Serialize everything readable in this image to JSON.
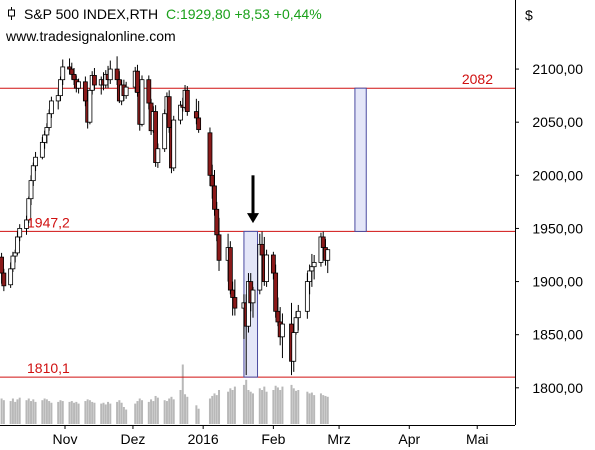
{
  "header": {
    "symbol": "S&P 500 INDEX,RTH",
    "quote": "C:1929,80 +8,53 +0,44%",
    "source": "www.tradesignalonline.com",
    "currency": "$"
  },
  "colors": {
    "level_line": "#d01010",
    "bull": "#ffffff",
    "bear": "#8b1a1a",
    "box_fill": "#e4e6f8",
    "box_stroke": "#4a4aa0",
    "volume": "#b8b8b8",
    "quote_green": "#1aa01a"
  },
  "chart_data": {
    "type": "candlestick",
    "title": "S&P 500 INDEX,RTH",
    "ylim": [
      1765,
      2165
    ],
    "y_ticks": [
      {
        "value": 2100,
        "label": "2100,00"
      },
      {
        "value": 2050,
        "label": "2050,00"
      },
      {
        "value": 2000,
        "label": "2000,00"
      },
      {
        "value": 1950,
        "label": "1950,00"
      },
      {
        "value": 1900,
        "label": "1900,00"
      },
      {
        "value": 1850,
        "label": "1850,00"
      },
      {
        "value": 1800,
        "label": "1800,00"
      }
    ],
    "x_labels": [
      {
        "label": "Nov",
        "day": 0
      },
      {
        "label": "Dez",
        "day": 30
      },
      {
        "label": "2016",
        "day": 61
      },
      {
        "label": "Feb",
        "day": 92
      },
      {
        "label": "Mrz",
        "day": 121
      },
      {
        "label": "Apr",
        "day": 152
      },
      {
        "label": "Mai",
        "day": 182
      }
    ],
    "levels": [
      {
        "value": 2082,
        "label": "2082",
        "label_side": "right"
      },
      {
        "value": 1947.2,
        "label": "1947,2",
        "label_side": "left"
      },
      {
        "value": 1810.1,
        "label": "1810,1",
        "label_side": "left"
      }
    ],
    "boxes": [
      {
        "day_start": 79,
        "day_end": 85,
        "low": 1810.1,
        "high": 1947.2
      },
      {
        "day_start": 128,
        "day_end": 133,
        "low": 1947.2,
        "high": 2082
      }
    ],
    "arrow": {
      "day": 83,
      "from": 2000,
      "to": 1955
    },
    "candles": [
      [
        -28,
        1923,
        1927,
        1898,
        1908
      ],
      [
        -27,
        1908,
        1912,
        1891,
        1896
      ],
      [
        -24,
        1897,
        1918,
        1894,
        1912
      ],
      [
        -23,
        1912,
        1928,
        1909,
        1924
      ],
      [
        -22,
        1924,
        1930,
        1918,
        1927
      ],
      [
        -21,
        1927,
        1947,
        1925,
        1942
      ],
      [
        -20,
        1942,
        1954,
        1938,
        1950
      ],
      [
        -17,
        1950,
        1962,
        1944,
        1958
      ],
      [
        -16,
        1958,
        1980,
        1955,
        1978
      ],
      [
        -15,
        1978,
        2000,
        1972,
        1995
      ],
      [
        -14,
        1995,
        2012,
        1990,
        2009
      ],
      [
        -13,
        2009,
        2022,
        2004,
        2017
      ],
      [
        -10,
        2017,
        2036,
        2015,
        2031
      ],
      [
        -9,
        2031,
        2042,
        2025,
        2038
      ],
      [
        -8,
        2038,
        2049,
        2030,
        2045
      ],
      [
        -7,
        2045,
        2062,
        2042,
        2058
      ],
      [
        -6,
        2058,
        2074,
        2054,
        2070
      ],
      [
        -3,
        2070,
        2081,
        2062,
        2075
      ],
      [
        -2,
        2075,
        2093,
        2070,
        2090
      ],
      [
        -1,
        2090,
        2109,
        2085,
        2102
      ],
      [
        2,
        2102,
        2110,
        2095,
        2100
      ],
      [
        3,
        2100,
        2106,
        2090,
        2095
      ],
      [
        4,
        2095,
        2101,
        2085,
        2090
      ],
      [
        5,
        2090,
        2094,
        2078,
        2082
      ],
      [
        6,
        2082,
        2091,
        2077,
        2088
      ],
      [
        9,
        2088,
        2093,
        2065,
        2070
      ],
      [
        10,
        2070,
        2078,
        2044,
        2050
      ],
      [
        11,
        2050,
        2082,
        2048,
        2080
      ],
      [
        12,
        2080,
        2098,
        2076,
        2094
      ],
      [
        13,
        2094,
        2101,
        2080,
        2085
      ],
      [
        16,
        2085,
        2093,
        2076,
        2090
      ],
      [
        17,
        2090,
        2097,
        2080,
        2085
      ],
      [
        18,
        2085,
        2099,
        2082,
        2095
      ],
      [
        19,
        2095,
        2103,
        2082,
        2090
      ],
      [
        20,
        2090,
        2108,
        2086,
        2100
      ],
      [
        23,
        2100,
        2112,
        2085,
        2090
      ],
      [
        24,
        2090,
        2098,
        2068,
        2070
      ],
      [
        25,
        2070,
        2090,
        2066,
        2085
      ],
      [
        26,
        2085,
        2090,
        2070,
        2075
      ],
      [
        27,
        2075,
        2088,
        2072,
        2083
      ],
      [
        31,
        2083,
        2102,
        2078,
        2098
      ],
      [
        32,
        2098,
        2104,
        2074,
        2078
      ],
      [
        33,
        2078,
        2084,
        2042,
        2048
      ],
      [
        34,
        2048,
        2094,
        2046,
        2090
      ],
      [
        37,
        2090,
        2094,
        2062,
        2068
      ],
      [
        38,
        2068,
        2072,
        2038,
        2042
      ],
      [
        39,
        2042,
        2065,
        2040,
        2060
      ],
      [
        40,
        2060,
        2066,
        2008,
        2012
      ],
      [
        41,
        2012,
        2030,
        2007,
        2025
      ],
      [
        44,
        2025,
        2062,
        2022,
        2058
      ],
      [
        45,
        2058,
        2078,
        2052,
        2074
      ],
      [
        46,
        2074,
        2080,
        2040,
        2045
      ],
      [
        47,
        2045,
        2052,
        2002,
        2007
      ],
      [
        48,
        2007,
        2056,
        2004,
        2052
      ],
      [
        51,
        2052,
        2070,
        2048,
        2066
      ],
      [
        52,
        2066,
        2073,
        2060,
        2064
      ],
      [
        53,
        2064,
        2085,
        2062,
        2080
      ],
      [
        54,
        2080,
        2084,
        2056,
        2060
      ],
      [
        58,
        2060,
        2072,
        2048,
        2054
      ],
      [
        59,
        2054,
        2070,
        2040,
        2043
      ],
      [
        64,
        2040,
        2045,
        1990,
        2000
      ],
      [
        65,
        2000,
        2010,
        1978,
        1990
      ],
      [
        66,
        1990,
        2005,
        1962,
        1968
      ],
      [
        67,
        1968,
        1975,
        1938,
        1944
      ],
      [
        68,
        1944,
        1960,
        1910,
        1920
      ],
      [
        72,
        1920,
        1945,
        1900,
        1932
      ],
      [
        73,
        1932,
        1938,
        1888,
        1892
      ],
      [
        74,
        1892,
        1900,
        1868,
        1885
      ],
      [
        75,
        1885,
        1902,
        1868,
        1875
      ],
      [
        79,
        1875,
        1888,
        1846,
        1880
      ],
      [
        80,
        1880,
        1888,
        1812,
        1858
      ],
      [
        81,
        1858,
        1908,
        1852,
        1900
      ],
      [
        82,
        1900,
        1908,
        1872,
        1880
      ],
      [
        83,
        1880,
        1895,
        1866,
        1892
      ],
      [
        86,
        1892,
        1945,
        1888,
        1935
      ],
      [
        87,
        1935,
        1947,
        1920,
        1925
      ],
      [
        88,
        1925,
        1942,
        1896,
        1900
      ],
      [
        89,
        1900,
        1930,
        1895,
        1925
      ],
      [
        92,
        1925,
        1928,
        1902,
        1908
      ],
      [
        93,
        1908,
        1916,
        1866,
        1872
      ],
      [
        94,
        1872,
        1885,
        1858,
        1862
      ],
      [
        95,
        1862,
        1876,
        1840,
        1848
      ],
      [
        96,
        1848,
        1870,
        1828,
        1860
      ],
      [
        100,
        1860,
        1880,
        1812,
        1825
      ],
      [
        101,
        1825,
        1860,
        1815,
        1852
      ],
      [
        102,
        1852,
        1872,
        1850,
        1866
      ],
      [
        103,
        1866,
        1878,
        1854,
        1872
      ],
      [
        107,
        1872,
        1908,
        1865,
        1900
      ],
      [
        108,
        1900,
        1916,
        1888,
        1910
      ],
      [
        109,
        1910,
        1926,
        1895,
        1914
      ],
      [
        110,
        1914,
        1925,
        1902,
        1918
      ],
      [
        113,
        1918,
        1946,
        1914,
        1942
      ],
      [
        114,
        1942,
        1947,
        1922,
        1932
      ],
      [
        115,
        1932,
        1940,
        1915,
        1920
      ],
      [
        116,
        1920,
        1928,
        1908,
        1930
      ]
    ],
    "volumes": [
      [
        -28,
        0.3
      ],
      [
        -27,
        0.28
      ],
      [
        -24,
        0.27
      ],
      [
        -23,
        0.3
      ],
      [
        -22,
        0.26
      ],
      [
        -21,
        0.29
      ],
      [
        -20,
        0.31
      ],
      [
        -17,
        0.28
      ],
      [
        -16,
        0.3
      ],
      [
        -15,
        0.27
      ],
      [
        -14,
        0.29
      ],
      [
        -13,
        0.26
      ],
      [
        -10,
        0.28
      ],
      [
        -9,
        0.3
      ],
      [
        -8,
        0.29
      ],
      [
        -7,
        0.27
      ],
      [
        -6,
        0.25
      ],
      [
        -3,
        0.26
      ],
      [
        -2,
        0.28
      ],
      [
        -1,
        0.27
      ],
      [
        2,
        0.26
      ],
      [
        3,
        0.27
      ],
      [
        4,
        0.25
      ],
      [
        5,
        0.26
      ],
      [
        6,
        0.24
      ],
      [
        9,
        0.27
      ],
      [
        10,
        0.29
      ],
      [
        11,
        0.28
      ],
      [
        12,
        0.26
      ],
      [
        13,
        0.25
      ],
      [
        16,
        0.24
      ],
      [
        17,
        0.25
      ],
      [
        18,
        0.23
      ],
      [
        19,
        0.26
      ],
      [
        20,
        0.24
      ],
      [
        23,
        0.26
      ],
      [
        24,
        0.28
      ],
      [
        25,
        0.25
      ],
      [
        26,
        0.2
      ],
      [
        27,
        0.17
      ],
      [
        31,
        0.24
      ],
      [
        32,
        0.27
      ],
      [
        33,
        0.3
      ],
      [
        34,
        0.28
      ],
      [
        37,
        0.26
      ],
      [
        38,
        0.29
      ],
      [
        39,
        0.27
      ],
      [
        40,
        0.33
      ],
      [
        41,
        0.31
      ],
      [
        44,
        0.28
      ],
      [
        45,
        0.27
      ],
      [
        46,
        0.3
      ],
      [
        47,
        0.32
      ],
      [
        48,
        0.29
      ],
      [
        51,
        0.4
      ],
      [
        52,
        0.7
      ],
      [
        53,
        0.35
      ],
      [
        54,
        0.32
      ],
      [
        58,
        0.22
      ],
      [
        59,
        0.18
      ],
      [
        64,
        0.3
      ],
      [
        65,
        0.33
      ],
      [
        66,
        0.36
      ],
      [
        67,
        0.34
      ],
      [
        68,
        0.4
      ],
      [
        72,
        0.38
      ],
      [
        73,
        0.42
      ],
      [
        74,
        0.4
      ],
      [
        75,
        0.44
      ],
      [
        79,
        0.46
      ],
      [
        80,
        0.52
      ],
      [
        81,
        0.4
      ],
      [
        82,
        0.38
      ],
      [
        83,
        0.36
      ],
      [
        86,
        0.42
      ],
      [
        87,
        0.4
      ],
      [
        88,
        0.44
      ],
      [
        89,
        0.38
      ],
      [
        92,
        0.4
      ],
      [
        93,
        0.45
      ],
      [
        94,
        0.43
      ],
      [
        95,
        0.4
      ],
      [
        96,
        0.44
      ],
      [
        100,
        0.46
      ],
      [
        101,
        0.42
      ],
      [
        102,
        0.39
      ],
      [
        103,
        0.4
      ],
      [
        107,
        0.38
      ],
      [
        108,
        0.36
      ],
      [
        109,
        0.37
      ],
      [
        110,
        0.34
      ],
      [
        113,
        0.36
      ],
      [
        114,
        0.34
      ],
      [
        115,
        0.33
      ],
      [
        116,
        0.32
      ]
    ]
  }
}
